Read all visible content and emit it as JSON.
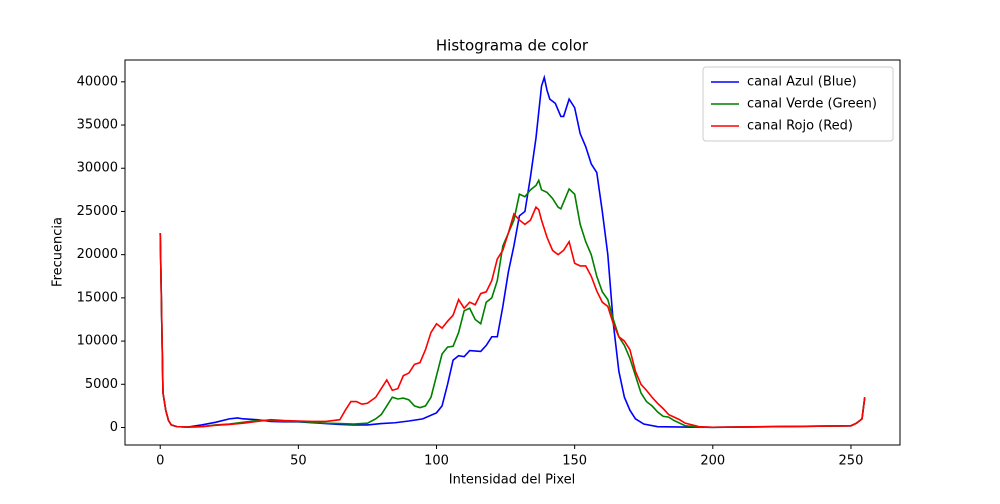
{
  "chart_data": {
    "type": "line",
    "title": "Histograma de color",
    "x_label": "Intensidad del Pixel",
    "y_label": "Frecuencia",
    "xlim": [
      -12.75,
      267.75
    ],
    "ylim": [
      -2025,
      42525
    ],
    "xticks": [
      0,
      50,
      100,
      150,
      200,
      250
    ],
    "yticks": [
      0,
      5000,
      10000,
      15000,
      20000,
      25000,
      30000,
      35000,
      40000
    ],
    "grid": false,
    "legend": "upper-right",
    "series": [
      {
        "name": "canal Azul (Blue)",
        "color": "#0000ff",
        "x": [
          0,
          1,
          2,
          3,
          4,
          6,
          10,
          15,
          20,
          25,
          28,
          30,
          35,
          40,
          45,
          50,
          55,
          60,
          65,
          70,
          75,
          80,
          85,
          90,
          95,
          100,
          102,
          104,
          106,
          108,
          110,
          112,
          116,
          118,
          120,
          122,
          124,
          126,
          128,
          130,
          132,
          134,
          136,
          138,
          139,
          140,
          141,
          143,
          145,
          146,
          148,
          150,
          152,
          154,
          156,
          158,
          160,
          162,
          164,
          166,
          168,
          170,
          172,
          175,
          180,
          190,
          200,
          250,
          252,
          254,
          255
        ],
        "values": [
          22500,
          4000,
          2000,
          800,
          300,
          100,
          50,
          300,
          600,
          1000,
          1100,
          1000,
          900,
          700,
          650,
          650,
          550,
          450,
          350,
          300,
          300,
          450,
          550,
          750,
          1000,
          1700,
          2500,
          5000,
          7800,
          8300,
          8200,
          8900,
          8800,
          9500,
          10500,
          10500,
          14000,
          18000,
          21000,
          24500,
          25000,
          29000,
          33500,
          39500,
          40500,
          39000,
          38000,
          37500,
          36000,
          36000,
          38000,
          37000,
          34000,
          32500,
          30500,
          29500,
          25000,
          20000,
          12000,
          6500,
          3500,
          2000,
          1000,
          400,
          100,
          50,
          20,
          200,
          500,
          1000,
          3500
        ]
      },
      {
        "name": "canal Verde (Green)",
        "color": "#008000",
        "x": [
          0,
          1,
          2,
          3,
          4,
          6,
          10,
          15,
          20,
          25,
          30,
          35,
          40,
          45,
          50,
          55,
          60,
          65,
          70,
          75,
          78,
          80,
          82,
          84,
          86,
          88,
          90,
          92,
          94,
          96,
          98,
          100,
          102,
          104,
          106,
          108,
          110,
          112,
          114,
          116,
          118,
          120,
          122,
          124,
          126,
          128,
          130,
          132,
          134,
          136,
          137,
          138,
          140,
          142,
          144,
          145,
          148,
          150,
          152,
          154,
          156,
          158,
          160,
          162,
          164,
          166,
          168,
          170,
          172,
          174,
          176,
          178,
          180,
          182,
          184,
          186,
          190,
          195,
          200,
          250,
          252,
          254,
          255
        ],
        "values": [
          22500,
          4000,
          2000,
          800,
          300,
          100,
          50,
          100,
          300,
          400,
          600,
          800,
          800,
          700,
          700,
          600,
          500,
          450,
          400,
          500,
          1000,
          1500,
          2500,
          3500,
          3300,
          3400,
          3200,
          2500,
          2300,
          2500,
          3500,
          6000,
          8500,
          9300,
          9400,
          11000,
          13500,
          13800,
          12500,
          12000,
          14500,
          15000,
          17000,
          21000,
          22500,
          24000,
          27000,
          26700,
          27500,
          28000,
          28600,
          27500,
          27200,
          26500,
          25500,
          25300,
          27600,
          27000,
          23500,
          21500,
          20000,
          17500,
          15700,
          14800,
          12500,
          10500,
          9500,
          8000,
          6000,
          4000,
          3000,
          2500,
          1800,
          1300,
          1200,
          800,
          200,
          50,
          20,
          200,
          500,
          1000,
          3500
        ]
      },
      {
        "name": "canal Rojo (Red)",
        "color": "#ff0000",
        "x": [
          0,
          1,
          2,
          3,
          4,
          6,
          10,
          15,
          20,
          25,
          30,
          35,
          40,
          45,
          50,
          55,
          60,
          65,
          67,
          69,
          71,
          73,
          75,
          78,
          80,
          82,
          84,
          86,
          88,
          90,
          92,
          94,
          96,
          98,
          100,
          102,
          104,
          106,
          108,
          110,
          112,
          114,
          116,
          118,
          120,
          122,
          124,
          126,
          128,
          130,
          132,
          134,
          136,
          137,
          138,
          140,
          142,
          144,
          146,
          148,
          150,
          152,
          154,
          156,
          158,
          160,
          162,
          164,
          166,
          168,
          170,
          172,
          174,
          176,
          178,
          180,
          182,
          184,
          186,
          188,
          190,
          195,
          200,
          250,
          252,
          254,
          255
        ],
        "values": [
          22500,
          4000,
          2000,
          800,
          300,
          100,
          50,
          100,
          250,
          350,
          500,
          700,
          900,
          800,
          750,
          700,
          700,
          900,
          2000,
          3000,
          3000,
          2700,
          2800,
          3500,
          4500,
          5500,
          4300,
          4500,
          6000,
          6300,
          7300,
          7500,
          9000,
          11000,
          12000,
          11500,
          12300,
          13000,
          14800,
          13800,
          14500,
          14200,
          15500,
          15700,
          17000,
          19500,
          20500,
          22500,
          24700,
          24000,
          23500,
          24000,
          25500,
          25200,
          24000,
          22000,
          20500,
          20000,
          20500,
          21500,
          19000,
          18700,
          18700,
          17500,
          15800,
          14500,
          14000,
          12000,
          10500,
          10000,
          9000,
          6500,
          5000,
          4300,
          3500,
          2800,
          2200,
          1500,
          1200,
          900,
          500,
          100,
          30,
          200,
          500,
          1000,
          3500
        ]
      }
    ]
  }
}
